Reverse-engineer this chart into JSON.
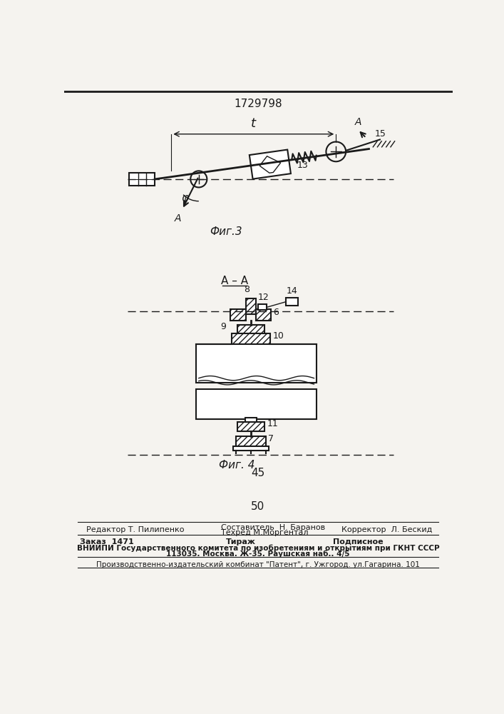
{
  "title": "1729798",
  "fig3_label": "Фиг.3",
  "fig4_label": "Фиг. 4",
  "page_num1": "45",
  "page_num2": "50",
  "editor_line": "Редактор Т. Пилипенко",
  "composer_line": "Составитель  Н. Баранов",
  "techred_line": "Техред М.Моргентал",
  "corrector_line": "Корректор  Л. Бескид",
  "order_line": "Заказ  1471",
  "tirazh_line": "Тираж",
  "podpisnoe_line": "Подписное",
  "vniip_line": "ВНИИПИ Государственного комитета по изобретениям и открытиям при ГКНТ СССР",
  "address_line": "113035. Москва. Ж-35. Раушская наб.. 4/5",
  "factory_line": "Производственно-издательский комбинат \"Патент\", г. Ужгород. ул.Гагарина. 101",
  "bg_color": "#f5f3ef",
  "line_color": "#1a1a1a"
}
